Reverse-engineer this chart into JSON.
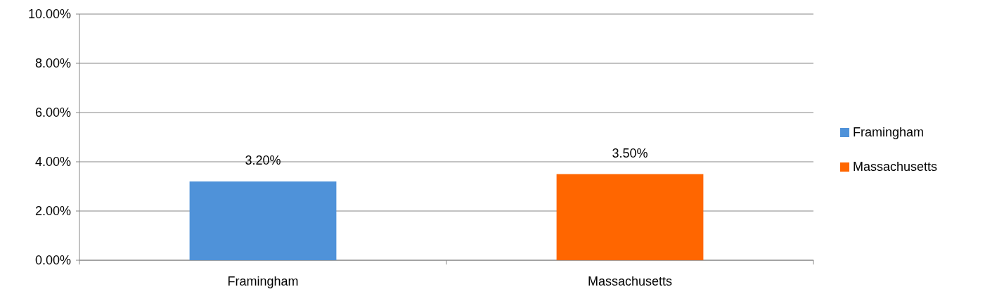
{
  "chart_data": {
    "type": "bar",
    "categories": [
      "Framingham",
      "Massachusetts"
    ],
    "series": [
      {
        "name": "Framingham",
        "color": "#4f92d9",
        "values": [
          3.2,
          null
        ],
        "value_labels": [
          "3.20%",
          null
        ]
      },
      {
        "name": "Massachusetts",
        "color": "#ff6600",
        "values": [
          null,
          3.5
        ],
        "value_labels": [
          null,
          "3.50%"
        ]
      }
    ],
    "ylim": [
      0,
      10
    ],
    "yticks": [
      {
        "value": 0,
        "label": "0.00%"
      },
      {
        "value": 2,
        "label": "2.00%"
      },
      {
        "value": 4,
        "label": "4.00%"
      },
      {
        "value": 6,
        "label": "6.00%"
      },
      {
        "value": 8,
        "label": "8.00%"
      },
      {
        "value": 10,
        "label": "10.00%"
      }
    ],
    "grid": "y",
    "legend": "right"
  }
}
